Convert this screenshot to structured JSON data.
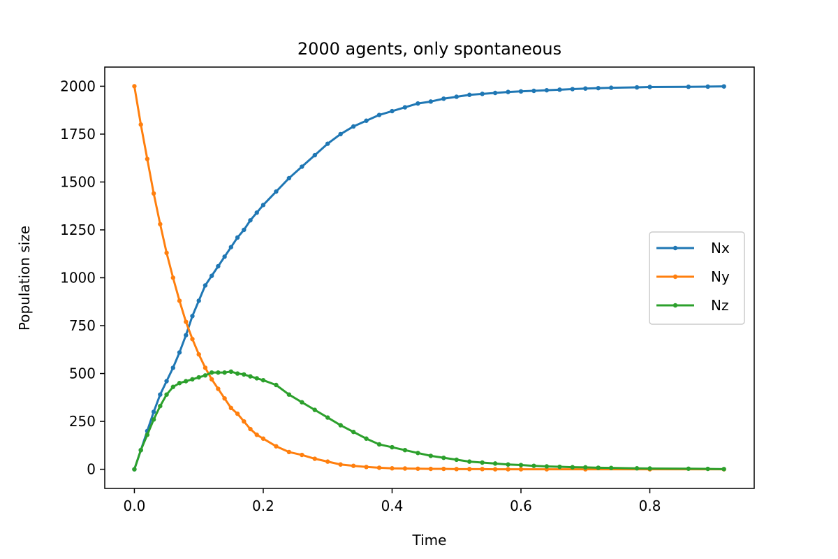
{
  "chart_data": {
    "type": "line",
    "title": "2000 agents, only spontaneous",
    "xlabel": "Time",
    "ylabel": "Population size",
    "xlim": [
      -0.046,
      0.962
    ],
    "ylim": [
      -100,
      2100
    ],
    "xticks": [
      0.0,
      0.2,
      0.4,
      0.6,
      0.8
    ],
    "xtick_labels": [
      "0.0",
      "0.2",
      "0.4",
      "0.6",
      "0.8"
    ],
    "yticks": [
      0,
      250,
      500,
      750,
      1000,
      1250,
      1500,
      1750,
      2000
    ],
    "ytick_labels": [
      "0",
      "250",
      "500",
      "750",
      "1000",
      "1250",
      "1500",
      "1750",
      "2000"
    ],
    "grid": false,
    "legend_position": "center-right",
    "markers": true,
    "series": [
      {
        "name": "Nx",
        "color": "#1f77b4",
        "x": [
          0.0,
          0.01,
          0.02,
          0.03,
          0.04,
          0.05,
          0.06,
          0.07,
          0.08,
          0.09,
          0.1,
          0.11,
          0.12,
          0.13,
          0.14,
          0.15,
          0.16,
          0.17,
          0.18,
          0.19,
          0.2,
          0.22,
          0.24,
          0.26,
          0.28,
          0.3,
          0.32,
          0.34,
          0.36,
          0.38,
          0.4,
          0.42,
          0.44,
          0.46,
          0.48,
          0.5,
          0.52,
          0.54,
          0.56,
          0.58,
          0.6,
          0.62,
          0.64,
          0.66,
          0.68,
          0.7,
          0.72,
          0.74,
          0.78,
          0.8,
          0.86,
          0.89,
          0.915
        ],
        "y": [
          0,
          100,
          200,
          300,
          390,
          460,
          530,
          610,
          700,
          800,
          880,
          960,
          1010,
          1060,
          1110,
          1160,
          1210,
          1250,
          1300,
          1340,
          1380,
          1450,
          1520,
          1580,
          1640,
          1700,
          1750,
          1790,
          1820,
          1850,
          1870,
          1890,
          1910,
          1920,
          1935,
          1945,
          1955,
          1960,
          1965,
          1970,
          1973,
          1976,
          1979,
          1982,
          1985,
          1988,
          1990,
          1992,
          1994,
          1996,
          1997,
          1998,
          1999
        ]
      },
      {
        "name": "Ny",
        "color": "#ff7f0e",
        "x": [
          0.0,
          0.01,
          0.02,
          0.03,
          0.04,
          0.05,
          0.06,
          0.07,
          0.08,
          0.09,
          0.1,
          0.11,
          0.12,
          0.13,
          0.14,
          0.15,
          0.16,
          0.17,
          0.18,
          0.19,
          0.2,
          0.22,
          0.24,
          0.26,
          0.28,
          0.3,
          0.32,
          0.34,
          0.36,
          0.38,
          0.4,
          0.42,
          0.44,
          0.46,
          0.48,
          0.5,
          0.52,
          0.54,
          0.56,
          0.58,
          0.6,
          0.64,
          0.7,
          0.8,
          0.915
        ],
        "y": [
          2000,
          1800,
          1620,
          1440,
          1280,
          1130,
          1000,
          880,
          770,
          680,
          600,
          530,
          470,
          420,
          370,
          320,
          290,
          250,
          210,
          180,
          160,
          120,
          90,
          75,
          55,
          40,
          25,
          18,
          12,
          8,
          5,
          4,
          3,
          2,
          2,
          1,
          1,
          1,
          0,
          0,
          0,
          0,
          0,
          0,
          0
        ]
      },
      {
        "name": "Nz",
        "color": "#2ca02c",
        "x": [
          0.0,
          0.01,
          0.02,
          0.03,
          0.04,
          0.05,
          0.06,
          0.07,
          0.08,
          0.09,
          0.1,
          0.11,
          0.12,
          0.13,
          0.14,
          0.15,
          0.16,
          0.17,
          0.18,
          0.19,
          0.2,
          0.22,
          0.24,
          0.26,
          0.28,
          0.3,
          0.32,
          0.34,
          0.36,
          0.38,
          0.4,
          0.42,
          0.44,
          0.46,
          0.48,
          0.5,
          0.52,
          0.54,
          0.56,
          0.58,
          0.6,
          0.62,
          0.64,
          0.66,
          0.68,
          0.7,
          0.72,
          0.74,
          0.78,
          0.8,
          0.86,
          0.89,
          0.915
        ],
        "y": [
          0,
          100,
          180,
          260,
          330,
          390,
          430,
          450,
          460,
          470,
          480,
          490,
          505,
          505,
          505,
          510,
          500,
          495,
          485,
          475,
          465,
          440,
          390,
          350,
          310,
          270,
          230,
          195,
          160,
          130,
          115,
          100,
          85,
          70,
          60,
          50,
          40,
          35,
          30,
          25,
          22,
          18,
          15,
          13,
          11,
          10,
          8,
          7,
          5,
          4,
          3,
          2,
          1
        ]
      }
    ]
  }
}
